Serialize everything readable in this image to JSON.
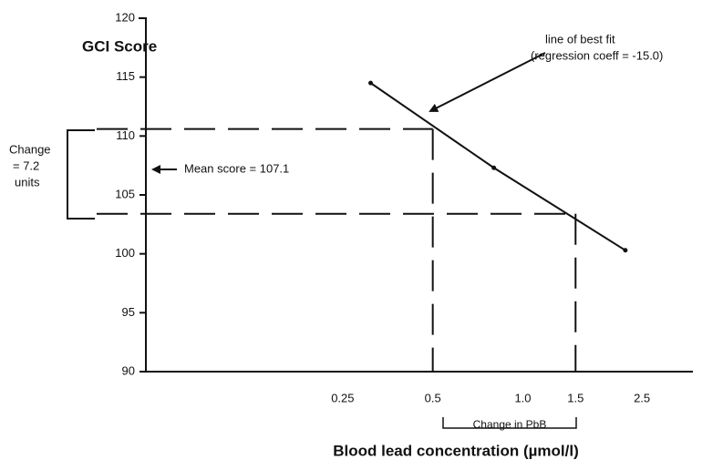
{
  "chart_data": {
    "type": "line",
    "y_label": "GCI Score",
    "x_label": "Blood lead concentration (µmol/l)",
    "x": [
      0.31,
      0.8,
      2.2
    ],
    "values": [
      114.5,
      107.3,
      100.3
    ],
    "color": "#111111",
    "xscale": "log",
    "xlim": [
      0.055,
      3.7
    ],
    "xticks": [
      0.25,
      0.5,
      {
        "value": 1.0,
        "label": "1.0"
      },
      1.5,
      2.5
    ],
    "ylim": [
      90,
      120
    ],
    "yticks": [
      90,
      95,
      100,
      105,
      110,
      115,
      120
    ],
    "guides": [
      {
        "x": 0.5,
        "y": 110.6
      },
      {
        "x": 1.5,
        "y": 103.4
      }
    ],
    "annotations": {
      "fit_line": "line of best fit",
      "fit_coeff": "(regression coeff = -15.0)",
      "mean": "Mean score = 107.1",
      "change_1": "Change",
      "change_2": "= 7.2",
      "change_3": "units",
      "pbb": "Change in PbB"
    }
  }
}
